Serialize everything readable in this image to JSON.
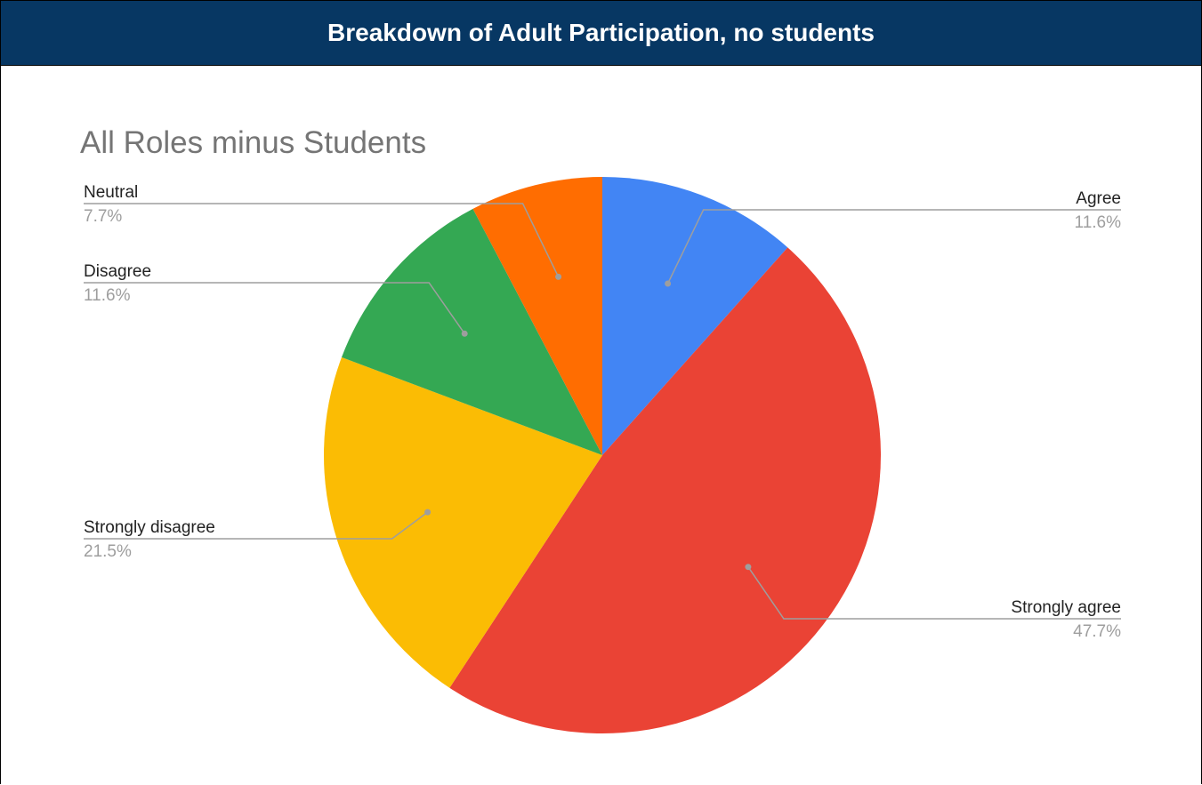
{
  "banner": {
    "title": "Breakdown of Adult Participation, no students"
  },
  "chart_data": {
    "type": "pie",
    "title": "All Roles minus Students",
    "legend": "labels-outside",
    "start_angle_deg": 0,
    "direction": "clockwise",
    "slices": [
      {
        "label": "Agree",
        "value": 11.6,
        "display": "11.6%",
        "color": "#4285f4"
      },
      {
        "label": "Strongly agree",
        "value": 47.7,
        "display": "47.7%",
        "color": "#ea4335"
      },
      {
        "label": "Strongly disagree",
        "value": 21.5,
        "display": "21.5%",
        "color": "#fbbc04"
      },
      {
        "label": "Disagree",
        "value": 11.6,
        "display": "11.6%",
        "color": "#34a853"
      },
      {
        "label": "Neutral",
        "value": 7.7,
        "display": "7.7%",
        "color": "#ff6d01"
      }
    ]
  }
}
